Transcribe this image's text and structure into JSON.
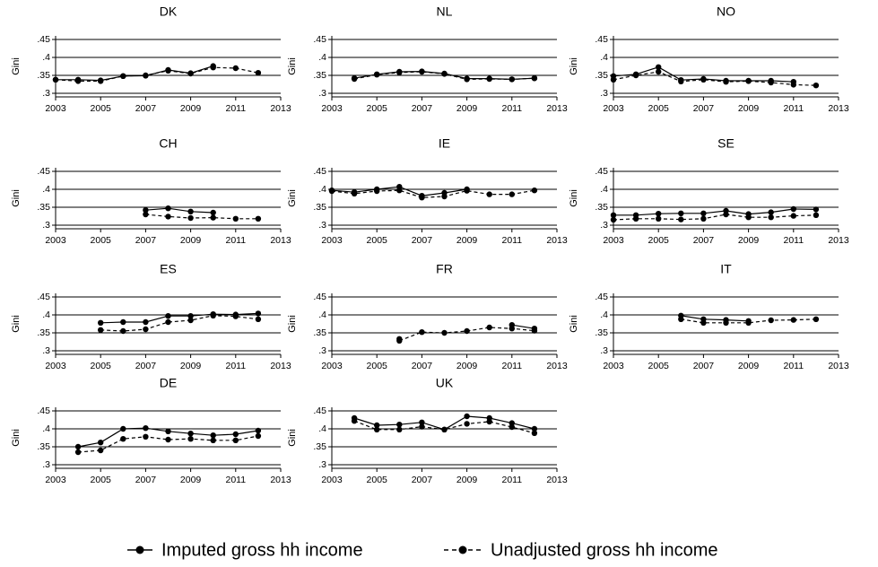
{
  "chart_data": [
    {
      "type": "line",
      "title": "DK",
      "y_label": "Gini",
      "x": [
        2003,
        2004,
        2005,
        2006,
        2007,
        2008,
        2009,
        2010,
        2011,
        2012
      ],
      "series": [
        {
          "name": "Imputed gross hh income",
          "color": "#000000",
          "line_style": "solid",
          "values": [
            0.338,
            0.338,
            0.336,
            0.348,
            0.349,
            0.365,
            0.356,
            0.376,
            null,
            null
          ]
        },
        {
          "name": "Unadjusted gross hh income",
          "color": "#000000",
          "line_style": "dashed",
          "values": [
            0.338,
            0.334,
            0.334,
            0.348,
            0.35,
            0.363,
            0.355,
            0.372,
            0.37,
            0.357
          ]
        }
      ],
      "xlim": [
        2003,
        2013
      ],
      "xticks": [
        2003,
        2005,
        2007,
        2009,
        2011,
        2013
      ],
      "ylim": [
        0.29,
        0.46
      ],
      "yticks": [
        {
          "value": 0.3,
          "label": ".3"
        },
        {
          "value": 0.35,
          "label": ".35"
        },
        {
          "value": 0.4,
          "label": ".4"
        },
        {
          "value": 0.45,
          "label": ".45"
        }
      ],
      "grid": true
    },
    {
      "type": "line",
      "title": "NL",
      "y_label": "Gini",
      "x": [
        2003,
        2004,
        2005,
        2006,
        2007,
        2008,
        2009,
        2010,
        2011,
        2012
      ],
      "series": [
        {
          "name": "Imputed gross hh income",
          "color": "#000000",
          "line_style": "solid",
          "values": [
            null,
            0.342,
            0.353,
            0.36,
            0.361,
            0.355,
            0.341,
            0.341,
            0.339,
            0.342
          ]
        },
        {
          "name": "Unadjusted gross hh income",
          "color": "#000000",
          "line_style": "dashed",
          "values": [
            null,
            0.34,
            0.352,
            0.358,
            0.36,
            0.354,
            0.339,
            0.34,
            0.339,
            0.342
          ]
        }
      ],
      "xlim": [
        2003,
        2013
      ],
      "xticks": [
        2003,
        2005,
        2007,
        2009,
        2011,
        2013
      ],
      "ylim": [
        0.29,
        0.46
      ],
      "yticks": [
        {
          "value": 0.3,
          "label": ".3"
        },
        {
          "value": 0.35,
          "label": ".35"
        },
        {
          "value": 0.4,
          "label": ".4"
        },
        {
          "value": 0.45,
          "label": ".45"
        }
      ],
      "grid": true
    },
    {
      "type": "line",
      "title": "NO",
      "y_label": "Gini",
      "x": [
        2003,
        2004,
        2005,
        2006,
        2007,
        2008,
        2009,
        2010,
        2011,
        2012
      ],
      "series": [
        {
          "name": "Imputed gross hh income",
          "color": "#000000",
          "line_style": "solid",
          "values": [
            0.348,
            0.353,
            0.373,
            0.337,
            0.34,
            0.335,
            0.335,
            0.335,
            0.332,
            null
          ]
        },
        {
          "name": "Unadjusted gross hh income",
          "color": "#000000",
          "line_style": "dashed",
          "values": [
            0.338,
            0.35,
            0.36,
            0.333,
            0.338,
            0.332,
            0.334,
            0.33,
            0.324,
            0.322
          ]
        }
      ],
      "xlim": [
        2003,
        2013
      ],
      "xticks": [
        2003,
        2005,
        2007,
        2009,
        2011,
        2013
      ],
      "ylim": [
        0.29,
        0.46
      ],
      "yticks": [
        {
          "value": 0.3,
          "label": ".3"
        },
        {
          "value": 0.35,
          "label": ".35"
        },
        {
          "value": 0.4,
          "label": ".4"
        },
        {
          "value": 0.45,
          "label": ".45"
        }
      ],
      "grid": true
    },
    {
      "type": "line",
      "title": "CH",
      "y_label": "Gini",
      "x": [
        2007,
        2008,
        2009,
        2010,
        2011,
        2012
      ],
      "series": [
        {
          "name": "Imputed gross hh income",
          "color": "#000000",
          "line_style": "solid",
          "values": [
            0.342,
            0.347,
            0.338,
            0.335,
            null,
            null
          ]
        },
        {
          "name": "Unadjusted gross hh income",
          "color": "#000000",
          "line_style": "dashed",
          "values": [
            0.33,
            0.324,
            0.32,
            0.321,
            0.318,
            0.318
          ]
        }
      ],
      "xlim": [
        2003,
        2013
      ],
      "xticks": [
        2003,
        2005,
        2007,
        2009,
        2011,
        2013
      ],
      "ylim": [
        0.29,
        0.46
      ],
      "yticks": [
        {
          "value": 0.3,
          "label": ".3"
        },
        {
          "value": 0.35,
          "label": ".35"
        },
        {
          "value": 0.4,
          "label": ".4"
        },
        {
          "value": 0.45,
          "label": ".45"
        }
      ],
      "grid": true
    },
    {
      "type": "line",
      "title": "IE",
      "y_label": "Gini",
      "x": [
        2003,
        2004,
        2005,
        2006,
        2007,
        2008,
        2009,
        2010,
        2011,
        2012
      ],
      "series": [
        {
          "name": "Imputed gross hh income",
          "color": "#000000",
          "line_style": "solid",
          "values": [
            0.397,
            0.392,
            0.4,
            0.407,
            0.382,
            0.39,
            0.4,
            null,
            null,
            null
          ]
        },
        {
          "name": "Unadjusted gross hh income",
          "color": "#000000",
          "line_style": "dashed",
          "values": [
            0.395,
            0.388,
            0.395,
            0.397,
            0.377,
            0.38,
            0.396,
            0.386,
            0.386,
            0.397
          ]
        }
      ],
      "xlim": [
        2003,
        2013
      ],
      "xticks": [
        2003,
        2005,
        2007,
        2009,
        2011,
        2013
      ],
      "ylim": [
        0.29,
        0.46
      ],
      "yticks": [
        {
          "value": 0.3,
          "label": ".3"
        },
        {
          "value": 0.35,
          "label": ".35"
        },
        {
          "value": 0.4,
          "label": ".4"
        },
        {
          "value": 0.45,
          "label": ".45"
        }
      ],
      "grid": true
    },
    {
      "type": "line",
      "title": "SE",
      "y_label": "Gini",
      "x": [
        2003,
        2004,
        2005,
        2006,
        2007,
        2008,
        2009,
        2010,
        2011,
        2012
      ],
      "series": [
        {
          "name": "Imputed gross hh income",
          "color": "#000000",
          "line_style": "solid",
          "values": [
            0.328,
            0.328,
            0.332,
            0.333,
            0.333,
            0.34,
            0.331,
            0.336,
            0.345,
            0.344
          ]
        },
        {
          "name": "Unadjusted gross hh income",
          "color": "#000000",
          "line_style": "dashed",
          "values": [
            0.315,
            0.318,
            0.318,
            0.316,
            0.318,
            0.33,
            0.322,
            0.322,
            0.326,
            0.328
          ]
        }
      ],
      "xlim": [
        2003,
        2013
      ],
      "xticks": [
        2003,
        2005,
        2007,
        2009,
        2011,
        2013
      ],
      "ylim": [
        0.29,
        0.46
      ],
      "yticks": [
        {
          "value": 0.3,
          "label": ".3"
        },
        {
          "value": 0.35,
          "label": ".35"
        },
        {
          "value": 0.4,
          "label": ".4"
        },
        {
          "value": 0.45,
          "label": ".45"
        }
      ],
      "grid": true
    },
    {
      "type": "line",
      "title": "ES",
      "y_label": "Gini",
      "x": [
        2005,
        2006,
        2007,
        2008,
        2009,
        2010,
        2011,
        2012
      ],
      "series": [
        {
          "name": "Imputed gross hh income",
          "color": "#000000",
          "line_style": "solid",
          "values": [
            0.378,
            0.38,
            0.38,
            0.397,
            0.397,
            0.402,
            0.401,
            0.404
          ]
        },
        {
          "name": "Unadjusted gross hh income",
          "color": "#000000",
          "line_style": "dashed",
          "values": [
            0.358,
            0.355,
            0.36,
            0.38,
            0.385,
            0.398,
            0.396,
            0.388
          ]
        }
      ],
      "xlim": [
        2003,
        2013
      ],
      "xticks": [
        2003,
        2005,
        2007,
        2009,
        2011,
        2013
      ],
      "ylim": [
        0.29,
        0.46
      ],
      "yticks": [
        {
          "value": 0.3,
          "label": ".3"
        },
        {
          "value": 0.35,
          "label": ".35"
        },
        {
          "value": 0.4,
          "label": ".4"
        },
        {
          "value": 0.45,
          "label": ".45"
        }
      ],
      "grid": true
    },
    {
      "type": "line",
      "title": "FR",
      "y_label": "Gini",
      "x": [
        2006,
        2007,
        2008,
        2009,
        2010,
        2011,
        2012
      ],
      "series": [
        {
          "name": "Imputed gross hh income",
          "color": "#000000",
          "line_style": "solid",
          "values": [
            0.333,
            null,
            null,
            null,
            null,
            0.372,
            0.362
          ]
        },
        {
          "name": "Unadjusted gross hh income",
          "color": "#000000",
          "line_style": "dashed",
          "values": [
            0.328,
            0.352,
            0.35,
            0.355,
            0.365,
            0.362,
            0.356
          ]
        }
      ],
      "xlim": [
        2003,
        2013
      ],
      "xticks": [
        2003,
        2005,
        2007,
        2009,
        2011,
        2013
      ],
      "ylim": [
        0.29,
        0.46
      ],
      "yticks": [
        {
          "value": 0.3,
          "label": ".3"
        },
        {
          "value": 0.35,
          "label": ".35"
        },
        {
          "value": 0.4,
          "label": ".4"
        },
        {
          "value": 0.45,
          "label": ".45"
        }
      ],
      "grid": true
    },
    {
      "type": "line",
      "title": "IT",
      "y_label": "Gini",
      "x": [
        2006,
        2007,
        2008,
        2009,
        2010,
        2011,
        2012
      ],
      "series": [
        {
          "name": "Imputed gross hh income",
          "color": "#000000",
          "line_style": "solid",
          "values": [
            0.398,
            0.388,
            0.386,
            0.383,
            null,
            null,
            null
          ]
        },
        {
          "name": "Unadjusted gross hh income",
          "color": "#000000",
          "line_style": "dashed",
          "values": [
            0.388,
            0.378,
            0.378,
            0.378,
            0.385,
            0.386,
            0.388
          ]
        }
      ],
      "xlim": [
        2003,
        2013
      ],
      "xticks": [
        2003,
        2005,
        2007,
        2009,
        2011,
        2013
      ],
      "ylim": [
        0.29,
        0.46
      ],
      "yticks": [
        {
          "value": 0.3,
          "label": ".3"
        },
        {
          "value": 0.35,
          "label": ".35"
        },
        {
          "value": 0.4,
          "label": ".4"
        },
        {
          "value": 0.45,
          "label": ".45"
        }
      ],
      "grid": true
    },
    {
      "type": "line",
      "title": "DE",
      "y_label": "Gini",
      "x": [
        2004,
        2005,
        2006,
        2007,
        2008,
        2009,
        2010,
        2011,
        2012
      ],
      "series": [
        {
          "name": "Imputed gross hh income",
          "color": "#000000",
          "line_style": "solid",
          "values": [
            0.35,
            0.362,
            0.4,
            0.402,
            0.393,
            0.387,
            0.382,
            0.385,
            0.395
          ]
        },
        {
          "name": "Unadjusted gross hh income",
          "color": "#000000",
          "line_style": "dashed",
          "values": [
            0.335,
            0.34,
            0.372,
            0.378,
            0.37,
            0.372,
            0.368,
            0.368,
            0.38
          ]
        }
      ],
      "xlim": [
        2003,
        2013
      ],
      "xticks": [
        2003,
        2005,
        2007,
        2009,
        2011,
        2013
      ],
      "ylim": [
        0.29,
        0.46
      ],
      "yticks": [
        {
          "value": 0.3,
          "label": ".3"
        },
        {
          "value": 0.35,
          "label": ".35"
        },
        {
          "value": 0.4,
          "label": ".4"
        },
        {
          "value": 0.45,
          "label": ".45"
        }
      ],
      "grid": true
    },
    {
      "type": "line",
      "title": "UK",
      "y_label": "Gini",
      "x": [
        2004,
        2005,
        2006,
        2007,
        2008,
        2009,
        2010,
        2011,
        2012
      ],
      "series": [
        {
          "name": "Imputed gross hh income",
          "color": "#000000",
          "line_style": "solid",
          "values": [
            0.43,
            0.41,
            0.412,
            0.418,
            0.398,
            0.435,
            0.43,
            0.416,
            0.4
          ]
        },
        {
          "name": "Unadjusted gross hh income",
          "color": "#000000",
          "line_style": "dashed",
          "values": [
            0.422,
            0.398,
            0.398,
            0.406,
            0.398,
            0.414,
            0.42,
            0.405,
            0.388
          ]
        }
      ],
      "xlim": [
        2003,
        2013
      ],
      "xticks": [
        2003,
        2005,
        2007,
        2009,
        2011,
        2013
      ],
      "ylim": [
        0.29,
        0.46
      ],
      "yticks": [
        {
          "value": 0.3,
          "label": ".3"
        },
        {
          "value": 0.35,
          "label": ".35"
        },
        {
          "value": 0.4,
          "label": ".4"
        },
        {
          "value": 0.45,
          "label": ".45"
        }
      ],
      "grid": true
    }
  ]
}
